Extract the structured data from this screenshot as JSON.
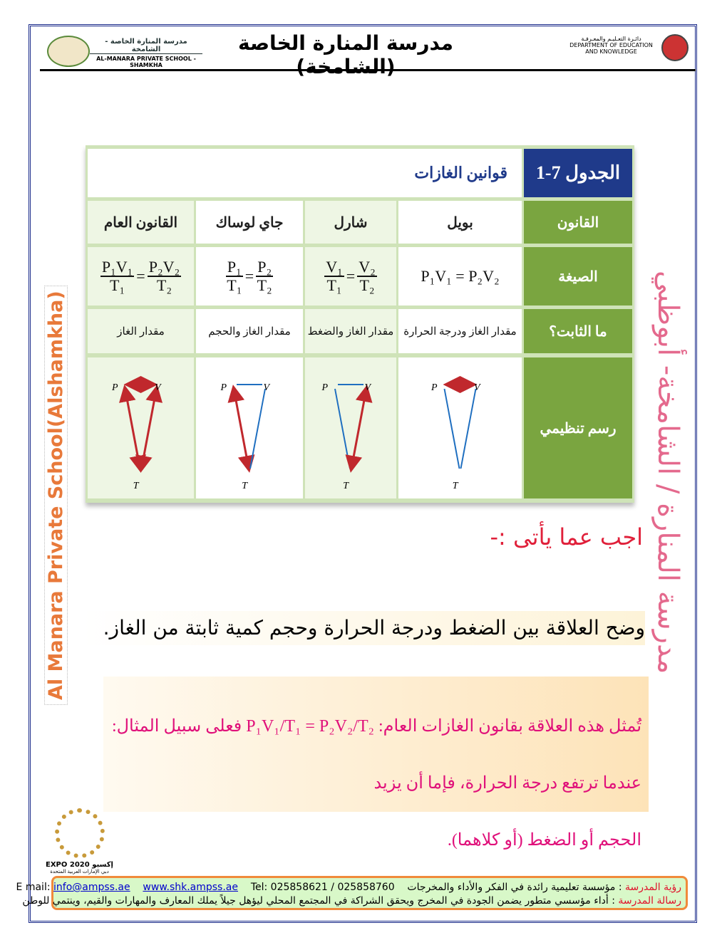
{
  "header": {
    "title": "مدرسة المنارة الخاصة (الشامخة)",
    "school_ar": "مدرسة المنارة الخاصة - الشامخة",
    "school_en": "AL-MANARA PRIVATE SCHOOL - SHAMKHA",
    "dept_ar": "دائـرة التعـليـم والمعـرفـة",
    "dept_en1": "DEPARTMENT OF EDUCATION",
    "dept_en2": "AND KNOWLEDGE"
  },
  "table": {
    "title": "الجدول 7-1",
    "subtitle": "قوانين الغازات",
    "row_labels": [
      "القانون",
      "الصيغة",
      "ما الثابت؟",
      "رسم تنظيمي"
    ],
    "laws": [
      {
        "name": "بويل",
        "constant": "مقدار الغاز ودرجة الحرارة"
      },
      {
        "name": "شارل",
        "constant": "مقدار الغاز والضغط"
      },
      {
        "name": "جاي لوساك",
        "constant": "مقدار الغاز والحجم"
      },
      {
        "name": "القانون العام",
        "constant": "مقدار الغاز"
      }
    ],
    "formulas": {
      "boyle": "P₁V₁ = P₂V₂",
      "charles": {
        "n1": "V₁",
        "d1": "T₁",
        "n2": "V₂",
        "d2": "T₂"
      },
      "gay": {
        "n1": "P₁",
        "d1": "T₁",
        "n2": "P₂",
        "d2": "T₂"
      },
      "general": {
        "n1": "P₁V₁",
        "d1": "T₁",
        "n2": "P₂V₂",
        "d2": "T₂"
      },
      "eq": "="
    },
    "diagram_labels": {
      "p": "P",
      "v": "V",
      "t": "T"
    },
    "colors": {
      "inverse": "#c0282d",
      "direct": "#1f6fc0"
    }
  },
  "question": {
    "heading": "اجب عما يأتى :-",
    "text": "وضح العلاقة بين الضغط ودرجة الحرارة وحجم كمية ثابتة من الغاز.",
    "answer_1": "تُمثل هذه العلاقة بقانون الغازات العام: P₁V₁/T₁ = P₂V₂/T₂ فعلى سبيل المثال: عندما ترتفع درجة الحرارة، فإما أن يزيد",
    "answer_2": "الحجم أو الضغط (أو كلاهما)."
  },
  "side": {
    "left": "Al Manara Private School(Alshamkha)",
    "right": "مدرسة المنارة / الشامخة- أبوظبي"
  },
  "expo": {
    "label": "EXPO 2020 إكسبو",
    "sub": "دبي الإمارات العربية المتحدة"
  },
  "footer": {
    "vision_label": "رؤية المدرسة",
    "vision": " : مؤسسة تعليمية رائدة في الفكر والأداء والمخرجات",
    "tel": "Tel: 025858621 / 025858760",
    "website": "www.shk.ampss.ae",
    "email_label": "E mail: ",
    "email": "info@ampss.ae",
    "mission_label": "رسالة المدرسة",
    "mission": " : أداء مؤسسي متطور يضمن الجودة في المخرج ويحقق الشراكة في المجتمع المحلي ليؤهل جيلاً يملك المعارف والمهارات والقيم، وينتمي للوطن"
  }
}
